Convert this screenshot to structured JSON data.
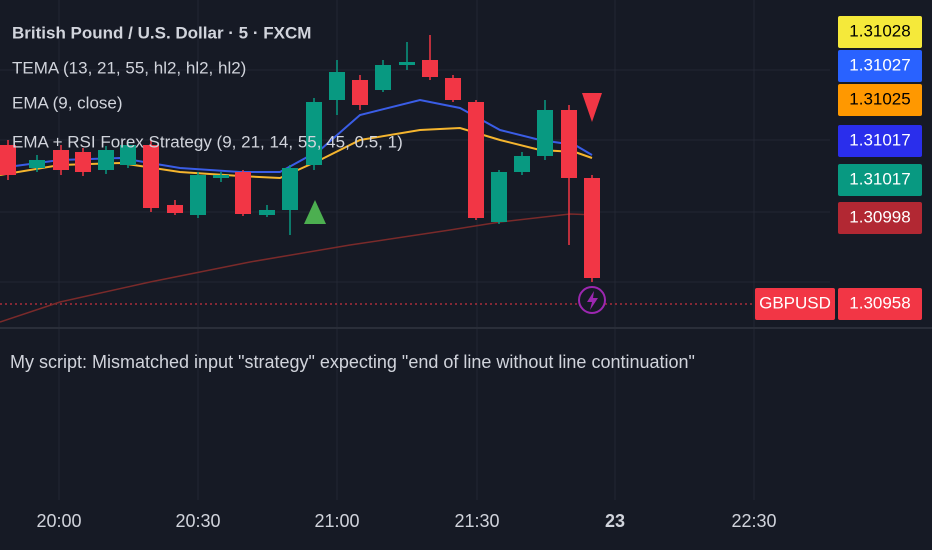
{
  "header": {
    "title": "British Pound / U.S. Dollar · 5 · FXCM",
    "indicators": [
      "TEMA (13, 21, 55, hl2, hl2, hl2)",
      "EMA (9, close)",
      "EMA + RSI Forex Strategy (9, 21, 14, 55, 45, 0.5, 1)"
    ]
  },
  "price_labels": [
    "1.31028",
    "1.31027",
    "1.31025",
    "1.31017",
    "1.31017",
    "1.30998"
  ],
  "last_price": {
    "symbol": "GBPUSD",
    "price": "1.30958"
  },
  "error_message": "My script: Mismatched input \"strategy\" expecting \"end of line without line continuation\"",
  "time_axis": [
    "20:00",
    "20:30",
    "21:00",
    "21:30",
    "23",
    "22:30"
  ]
}
